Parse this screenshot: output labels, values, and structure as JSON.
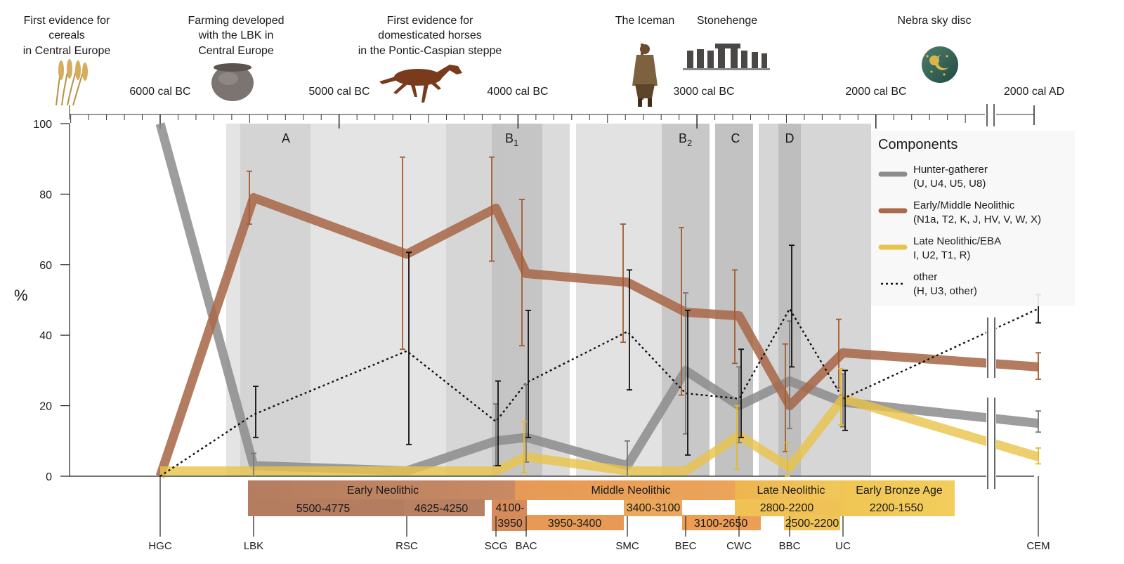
{
  "chart_data": {
    "type": "line",
    "ylabel": "%",
    "ylim": [
      0,
      100
    ],
    "y_ticks": [
      0,
      20,
      40,
      60,
      80,
      100
    ],
    "timescale": {
      "major_labels": [
        "6000 cal BC",
        "5000 cal BC",
        "4000 cal BC",
        "3000 cal BC",
        "2000 cal BC",
        "2000 cal AD"
      ],
      "major_years": [
        -6000,
        -5000,
        -4000,
        -3000,
        -2000,
        2000
      ],
      "break_between": [
        "2000 cal BC",
        "2000 cal AD"
      ]
    },
    "events": [
      {
        "label": "First evidence for cereals in Central Europe",
        "icon": "wheat-icon"
      },
      {
        "label": "Farming developed with the LBK in Central Europe",
        "icon": "pottery-icon"
      },
      {
        "label": "First evidence for domesticated horses in the Pontic-Caspian steppe",
        "icon": "horse-icon"
      },
      {
        "label": "The Iceman",
        "icon": "iceman-icon"
      },
      {
        "label": "Stonehenge",
        "icon": "stonehenge-icon"
      },
      {
        "label": "Nebra sky disc",
        "icon": "sky-disc-icon"
      }
    ],
    "shaded_phases": [
      "A",
      "B1",
      "B2",
      "C",
      "D"
    ],
    "cultures": [
      "HGC",
      "LBK",
      "RSC",
      "SCG",
      "BAC",
      "SMC",
      "BEC",
      "CWC",
      "BBC",
      "UC",
      "CEM"
    ],
    "series": [
      {
        "name": "Hunter-gatherer",
        "sub": "(U, U4, U5, U8)",
        "color": "#8c8c8c",
        "values": [
          100,
          3,
          1.5,
          10,
          11,
          3,
          30,
          20,
          27,
          21,
          15
        ],
        "error_bars": [
          null,
          [
            0,
            6.5
          ],
          null,
          [
            3,
            20.5
          ],
          [
            4,
            26
          ],
          [
            0,
            10
          ],
          [
            12,
            52
          ],
          [
            9.5,
            31
          ],
          [
            13.5,
            44
          ],
          [
            14,
            29
          ],
          [
            12.5,
            18.5
          ]
        ]
      },
      {
        "name": "Early/Middle Neolithic",
        "sub": "(N1a, T2, K, J, HV, V, W, X)",
        "color": "#a9694a",
        "values": [
          0,
          79,
          63,
          76,
          57.5,
          55,
          46.5,
          45.5,
          20,
          35,
          31
        ],
        "error_bars": [
          null,
          [
            71.5,
            86.5
          ],
          [
            36,
            90.5
          ],
          [
            61,
            90.5
          ],
          [
            37,
            78.5
          ],
          [
            38,
            71.5
          ],
          [
            23,
            70.5
          ],
          [
            32,
            58.5
          ],
          [
            7,
            37.5
          ],
          [
            25,
            44.5
          ],
          [
            27.5,
            35
          ]
        ]
      },
      {
        "name": "Late Neolithic/EBA",
        "sub": "I, U2, T1, R)",
        "color": "#e8c34a",
        "values": [
          1.5,
          1.5,
          1.5,
          1.5,
          5.5,
          1.5,
          1.5,
          11.5,
          2.5,
          22,
          5.5
        ],
        "error_bars": [
          null,
          null,
          null,
          null,
          [
            1,
            15.5
          ],
          null,
          null,
          [
            2,
            20
          ],
          [
            0,
            9.5
          ],
          [
            14.5,
            30.5
          ],
          [
            3.5,
            8
          ]
        ]
      },
      {
        "name": "other",
        "sub": "(H, U3, other)",
        "color": "#111111",
        "values": [
          0,
          17.5,
          35.5,
          15.5,
          26.5,
          41,
          23.5,
          22,
          47.5,
          22,
          47.5
        ],
        "error_bars": [
          null,
          [
            11,
            25.5
          ],
          [
            9,
            63.5
          ],
          [
            3,
            27
          ],
          [
            11,
            47
          ],
          [
            24.5,
            58.5
          ],
          [
            6,
            47
          ],
          [
            11,
            36
          ],
          [
            31,
            65.5
          ],
          [
            13,
            30
          ],
          [
            43.5,
            51.5
          ]
        ]
      }
    ],
    "legend": {
      "title": "Components",
      "placement": "right"
    },
    "cultural_periods": [
      {
        "name": "Early Neolithic",
        "color": "#b47d60"
      },
      {
        "name": "Middle Neolithic",
        "color": "#e59f5a"
      },
      {
        "name": "Late Neolithic",
        "color": "#eec050"
      },
      {
        "name": "Early Bronze Age",
        "color": "#eec050"
      }
    ],
    "date_ranges": [
      "5500-4775",
      "4625-4250",
      "4100-3950",
      "3950-3400",
      "3400-3100",
      "3100-2650",
      "2800-2200",
      "2500-2200",
      "2200-1550"
    ]
  }
}
